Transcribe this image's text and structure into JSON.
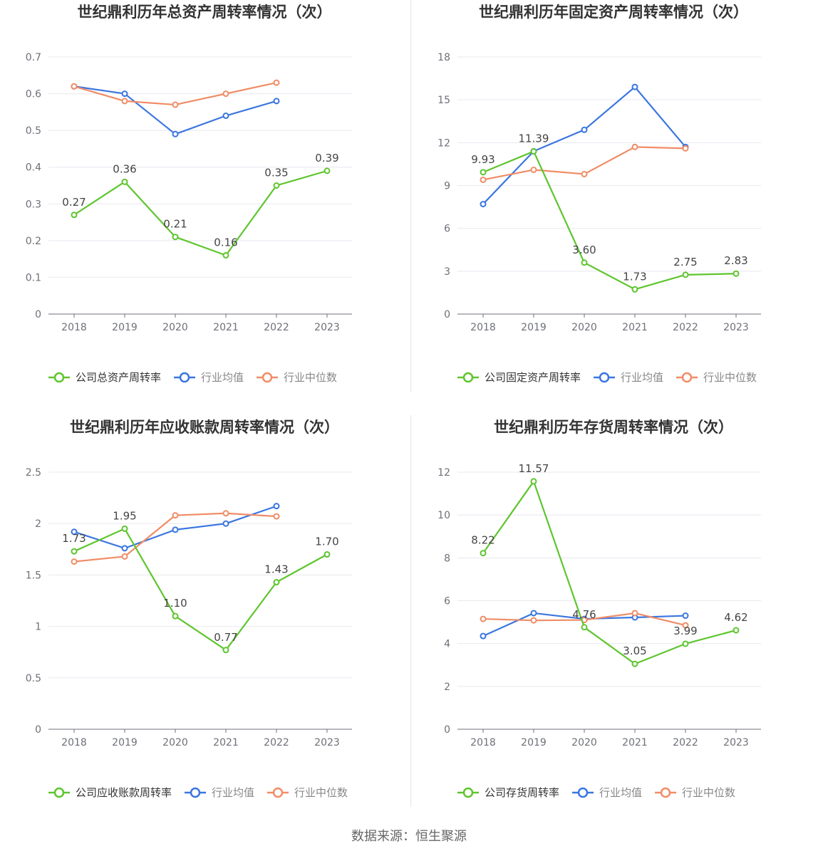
{
  "colors": {
    "company": "#5ec52e",
    "industry_avg": "#3a76e0",
    "industry_median": "#f08c66",
    "legend_company_text": "#333333",
    "legend_other_text": "#888888",
    "grid": "#e8e8f0",
    "axis": "#6e7079"
  },
  "source": "数据来源：恒生聚源",
  "chart_data": [
    {
      "type": "line",
      "title": "世纪鼎利历年总资产周转率情况（次）",
      "categories": [
        "2018",
        "2019",
        "2020",
        "2021",
        "2022",
        "2023"
      ],
      "ylim": [
        0,
        0.7
      ],
      "yticks": [
        "0",
        "0.1",
        "0.2",
        "0.3",
        "0.4",
        "0.5",
        "0.6",
        "0.7"
      ],
      "grid": true,
      "legend_position": "bottom",
      "series": [
        {
          "name": "公司总资产周转率",
          "color_key": "company",
          "values": [
            0.27,
            0.36,
            0.21,
            0.16,
            0.35,
            0.39
          ],
          "labels": [
            "0.27",
            "0.36",
            "0.21",
            "0.16",
            "0.35",
            "0.39"
          ]
        },
        {
          "name": "行业均值",
          "color_key": "industry_avg",
          "values": [
            0.62,
            0.6,
            0.49,
            0.54,
            0.58,
            null
          ]
        },
        {
          "name": "行业中位数",
          "color_key": "industry_median",
          "values": [
            0.62,
            0.58,
            0.57,
            0.6,
            0.63,
            null
          ]
        }
      ]
    },
    {
      "type": "line",
      "title": "世纪鼎利历年固定资产周转率情况（次）",
      "categories": [
        "2018",
        "2019",
        "2020",
        "2021",
        "2022",
        "2023"
      ],
      "ylim": [
        0,
        18
      ],
      "yticks": [
        "0",
        "3",
        "6",
        "9",
        "12",
        "15",
        "18"
      ],
      "grid": true,
      "legend_position": "bottom",
      "series": [
        {
          "name": "公司固定资产周转率",
          "color_key": "company",
          "values": [
            9.93,
            11.39,
            3.6,
            1.73,
            2.75,
            2.83
          ],
          "labels": [
            "9.93",
            "11.39",
            "3.60",
            "1.73",
            "2.75",
            "2.83"
          ]
        },
        {
          "name": "行业均值",
          "color_key": "industry_avg",
          "values": [
            7.7,
            11.4,
            12.9,
            15.9,
            11.7,
            null
          ]
        },
        {
          "name": "行业中位数",
          "color_key": "industry_median",
          "values": [
            9.4,
            10.1,
            9.8,
            11.7,
            11.6,
            null
          ]
        }
      ]
    },
    {
      "type": "line",
      "title": "世纪鼎利历年应收账款周转率情况（次）",
      "categories": [
        "2018",
        "2019",
        "2020",
        "2021",
        "2022",
        "2023"
      ],
      "ylim": [
        0,
        2.5
      ],
      "yticks": [
        "0",
        "0.5",
        "1",
        "1.5",
        "2",
        "2.5"
      ],
      "grid": true,
      "legend_position": "bottom",
      "series": [
        {
          "name": "公司应收账款周转率",
          "color_key": "company",
          "values": [
            1.73,
            1.95,
            1.1,
            0.77,
            1.43,
            1.7
          ],
          "labels": [
            "1.73",
            "1.95",
            "1.10",
            "0.77",
            "1.43",
            "1.70"
          ]
        },
        {
          "name": "行业均值",
          "color_key": "industry_avg",
          "values": [
            1.92,
            1.76,
            1.94,
            2.0,
            2.17,
            null
          ]
        },
        {
          "name": "行业中位数",
          "color_key": "industry_median",
          "values": [
            1.63,
            1.68,
            2.08,
            2.1,
            2.07,
            null
          ]
        }
      ]
    },
    {
      "type": "line",
      "title": "世纪鼎利历年存货周转率情况（次）",
      "categories": [
        "2018",
        "2019",
        "2020",
        "2021",
        "2022",
        "2023"
      ],
      "ylim": [
        0,
        12
      ],
      "yticks": [
        "0",
        "2",
        "4",
        "6",
        "8",
        "10",
        "12"
      ],
      "grid": true,
      "legend_position": "bottom",
      "series": [
        {
          "name": "公司存货周转率",
          "color_key": "company",
          "values": [
            8.22,
            11.57,
            4.76,
            3.05,
            3.99,
            4.62
          ],
          "labels": [
            "8.22",
            "11.57",
            "4.76",
            "3.05",
            "3.99",
            "4.62"
          ]
        },
        {
          "name": "行业均值",
          "color_key": "industry_avg",
          "values": [
            4.35,
            5.42,
            5.15,
            5.22,
            5.3,
            null
          ]
        },
        {
          "name": "行业中位数",
          "color_key": "industry_median",
          "values": [
            5.15,
            5.08,
            5.1,
            5.42,
            4.85,
            null
          ]
        }
      ]
    }
  ]
}
